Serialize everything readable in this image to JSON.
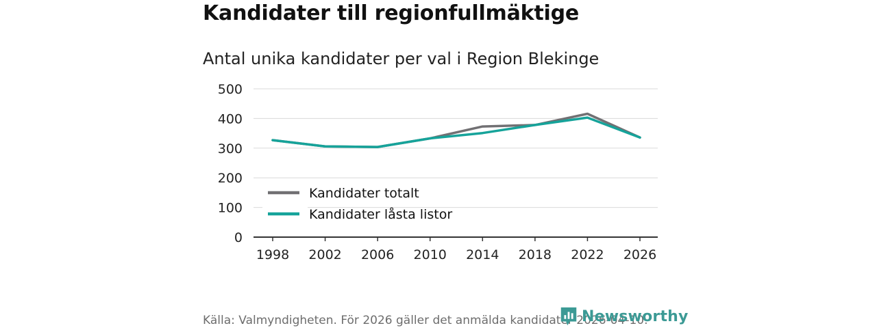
{
  "header": {
    "title": "Kandidater till regionfullmäktige",
    "subtitle": "Antal unika kandidater per val i Region Blekinge"
  },
  "footer": {
    "source": "Källa: Valmyndigheten. För 2026 gäller det anmälda kandidater 2026-04-10.",
    "brand": "Newsworthy"
  },
  "colors": {
    "total": "#717073",
    "locked": "#16a39a",
    "grid": "#d9d9d9",
    "axis": "#333333",
    "brand": "#3c9a95"
  },
  "chart_data": {
    "type": "line",
    "title": "Antal unika kandidater per val i Region Blekinge",
    "xlabel": "",
    "ylabel": "",
    "x": [
      1998,
      2002,
      2006,
      2010,
      2014,
      2018,
      2022,
      2026
    ],
    "ylim": [
      0,
      500
    ],
    "yticks": [
      0,
      100,
      200,
      300,
      400,
      500
    ],
    "grid": true,
    "legend": "bottom-left",
    "series": [
      {
        "name": "Kandidater totalt",
        "color": "#717073",
        "values": [
          327,
          306,
          304,
          333,
          373,
          378,
          416,
          336
        ]
      },
      {
        "name": "Kandidater låsta listor",
        "color": "#16a39a",
        "values": [
          327,
          306,
          304,
          333,
          351,
          378,
          403,
          336
        ]
      }
    ]
  }
}
